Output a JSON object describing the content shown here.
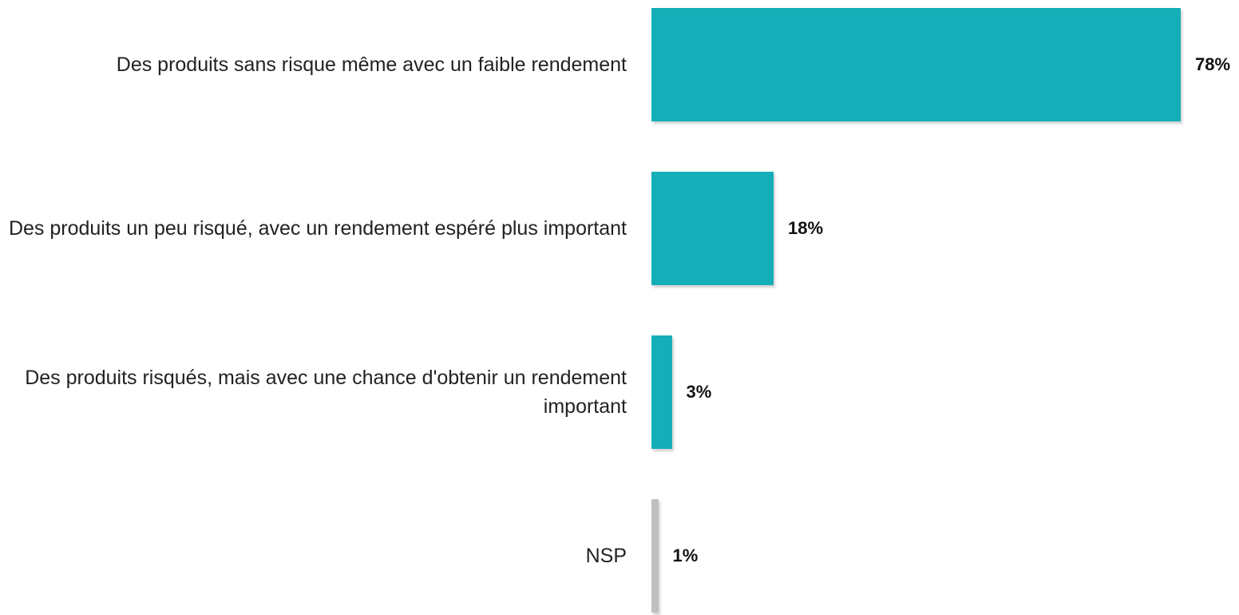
{
  "chart_data": {
    "type": "bar",
    "orientation": "horizontal",
    "categories": [
      "Des produits sans risque même avec un faible rendement",
      "Des produits un peu risqué, avec un rendement espéré plus important",
      "Des produits risqués, mais avec une chance d'obtenir un rendement important",
      "NSP"
    ],
    "values": [
      78,
      18,
      3,
      1
    ],
    "value_labels": [
      "78%",
      "18%",
      "3%",
      "1%"
    ],
    "colors": [
      "#14aeb8",
      "#14aeb8",
      "#14aeb8",
      "#bfbfbf"
    ]
  }
}
